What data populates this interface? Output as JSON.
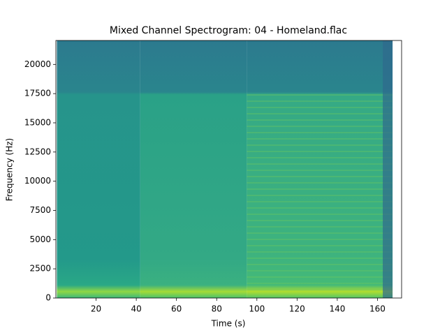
{
  "chart_data": {
    "type": "spectrogram",
    "title": "Mixed Channel Spectrogram: 04 - Homeland.flac",
    "x_label": "Time (s)",
    "y_label": "Frequency (Hz)",
    "time_edges": [
      0.5,
      42,
      95,
      167.5
    ],
    "xlim": [
      0,
      172
    ],
    "ylim": [
      0,
      22050
    ],
    "xticks": [
      20,
      40,
      60,
      80,
      100,
      120,
      140,
      160
    ],
    "yticks": [
      0,
      2500,
      5000,
      7500,
      10000,
      12500,
      15000,
      17500,
      20000
    ]
  }
}
